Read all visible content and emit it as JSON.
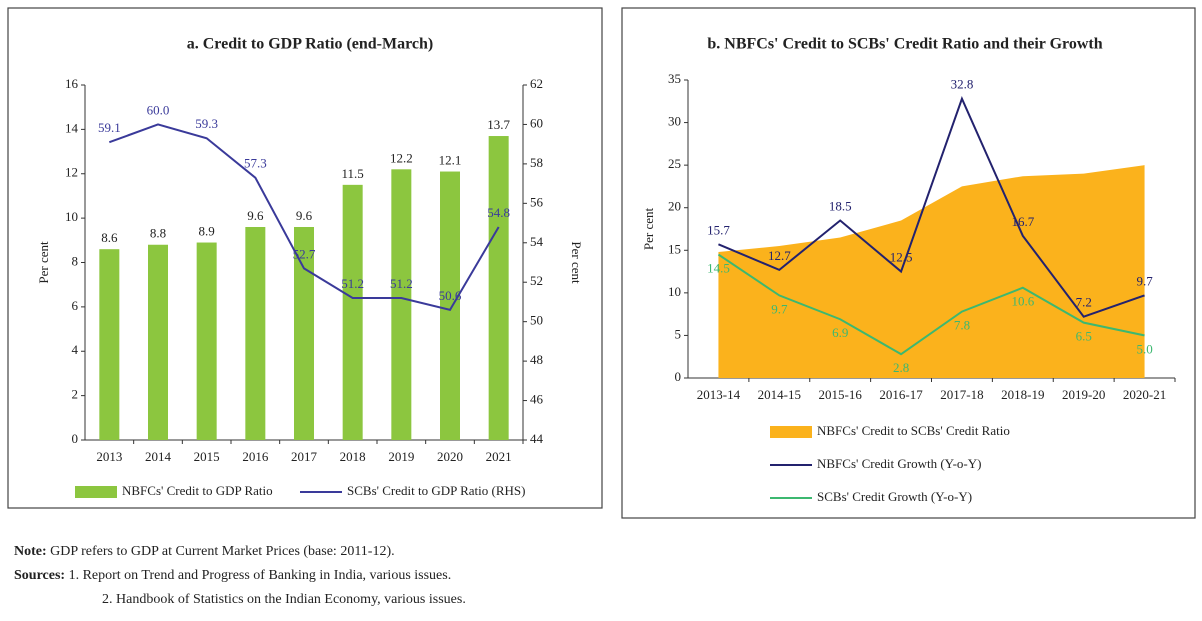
{
  "chart_data": [
    {
      "type": "combo",
      "title": "a. Credit to GDP Ratio (end-March)",
      "categories": [
        "2013",
        "2014",
        "2015",
        "2016",
        "2017",
        "2018",
        "2019",
        "2020",
        "2021"
      ],
      "ylabel": "Per cent",
      "y2label": "Per cent",
      "ylim": [
        0,
        16
      ],
      "yticks": [
        0,
        2,
        4,
        6,
        8,
        10,
        12,
        14,
        16
      ],
      "y2lim": [
        44,
        62
      ],
      "y2ticks": [
        44,
        46,
        48,
        50,
        52,
        54,
        56,
        58,
        60,
        62
      ],
      "series": [
        {
          "name": "NBFCs' Credit to GDP Ratio",
          "kind": "bar",
          "color": "#8cc63f",
          "values": [
            8.6,
            8.8,
            8.9,
            9.6,
            9.6,
            11.5,
            12.2,
            12.1,
            13.7
          ],
          "value_labels": [
            "8.6",
            "8.8",
            "8.9",
            "9.6",
            "9.6",
            "11.5",
            "12.2",
            "12.1",
            "13.7"
          ]
        },
        {
          "name": "SCBs' Credit to GDP Ratio (RHS)",
          "kind": "line",
          "axis": "y2",
          "color": "#3a3a9a",
          "values": [
            59.1,
            60.0,
            59.3,
            57.3,
            52.7,
            51.2,
            51.2,
            50.6,
            54.8
          ],
          "value_labels": [
            "59.1",
            "60.0",
            "59.3",
            "57.3",
            "52.7",
            "51.2",
            "51.2",
            "50.6",
            "54.8"
          ]
        }
      ]
    },
    {
      "type": "combo",
      "title": "b. NBFCs' Credit to SCBs' Credit Ratio and their Growth",
      "categories": [
        "2013-14",
        "2014-15",
        "2015-16",
        "2016-17",
        "2017-18",
        "2018-19",
        "2019-20",
        "2020-21"
      ],
      "ylabel": "Per cent",
      "ylim": [
        0,
        35
      ],
      "yticks": [
        0,
        5,
        10,
        15,
        20,
        25,
        30,
        35
      ],
      "series": [
        {
          "name": "NBFCs' Credit to SCBs' Credit Ratio",
          "kind": "area",
          "color": "#fbb21c",
          "values": [
            14.8,
            15.5,
            16.5,
            18.5,
            22.5,
            23.7,
            24.0,
            25.0
          ]
        },
        {
          "name": "NBFCs' Credit Growth (Y-o-Y)",
          "kind": "line",
          "color": "#23226e",
          "values": [
            15.7,
            12.7,
            18.5,
            12.5,
            32.8,
            16.7,
            7.2,
            9.7
          ],
          "value_labels": [
            "15.7",
            "12.7",
            "18.5",
            "12.5",
            "32.8",
            "16.7",
            "7.2",
            "9.7"
          ]
        },
        {
          "name": "SCBs' Credit Growth (Y-o-Y)",
          "kind": "line",
          "color": "#3cb870",
          "values": [
            14.5,
            9.7,
            6.9,
            2.8,
            7.8,
            10.6,
            6.5,
            5.0
          ],
          "value_labels": [
            "14.5",
            "9.7",
            "6.9",
            "2.8",
            "7.8",
            "10.6",
            "6.5",
            "5.0"
          ]
        }
      ]
    }
  ],
  "notes": {
    "note_label": "Note:",
    "note": "GDP refers to GDP at Current Market Prices (base: 2011-12).",
    "sources_label": "Sources:",
    "sources": [
      "1. Report on Trend and Progress of Banking in India, various issues.",
      "2. Handbook of Statistics on the Indian Economy, various issues."
    ]
  }
}
